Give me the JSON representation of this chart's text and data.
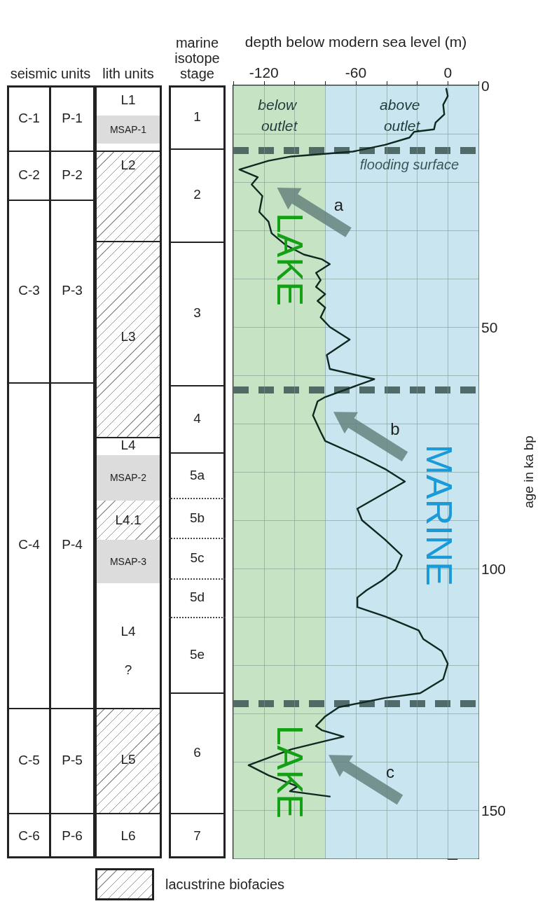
{
  "chart_data": [
    {
      "type": "other",
      "title": "seismic units",
      "annotations": [
        "C-1",
        "C-2",
        "C-3",
        "C-4",
        "C-5",
        "C-6",
        "P-1",
        "P-2",
        "P-3",
        "P-4",
        "P-5",
        "P-6"
      ]
    },
    {
      "type": "other",
      "title": "lith units",
      "annotations": [
        "L1",
        "MSAP-1",
        "L2",
        "L3",
        "L4",
        "MSAP-2",
        "L4.1",
        "MSAP-3",
        "L4",
        "?",
        "L5",
        "L6",
        "lacustrine biofacies"
      ]
    },
    {
      "type": "other",
      "title": "marine isotope stage",
      "annotations": [
        "1",
        "2",
        "3",
        "4",
        "5a",
        "5b",
        "5c",
        "5d",
        "5e",
        "6",
        "7"
      ]
    },
    {
      "type": "line",
      "xlabel": "depth below modern sea level (m)",
      "ylabel": "age in ka bp",
      "color": "#102820",
      "line_style": "solid",
      "grid": true,
      "x": [
        -1,
        0,
        -3,
        -2.3,
        -8,
        -9,
        -22,
        -25,
        -41,
        -62,
        -82,
        -102,
        -117,
        -136,
        -124,
        -128,
        -121,
        -123,
        -117,
        -115,
        -106,
        -94,
        -82,
        -77,
        -86,
        -83,
        -86,
        -80,
        -85,
        -80,
        -83,
        -77,
        -64,
        -79,
        -77,
        -48,
        -80,
        -85,
        -88,
        -83,
        -80,
        -56,
        -41,
        -28,
        -59,
        -56,
        -41,
        -30,
        -34,
        -43,
        -53,
        -59,
        -59,
        -41,
        -19,
        -16,
        -4,
        0,
        -3,
        -18,
        -41,
        -71,
        -80,
        -86,
        -82,
        -68,
        -80,
        -102,
        -130,
        -117,
        -98,
        -103,
        -77
      ],
      "values": [
        0.7,
        2.2,
        4,
        6,
        7.7,
        9.1,
        9.6,
        10.8,
        12.3,
        13.7,
        14.2,
        14.7,
        15.6,
        17.4,
        19,
        20.5,
        22.9,
        26.2,
        28.2,
        30.6,
        33,
        35,
        36,
        37,
        38.8,
        40.3,
        41.7,
        43.2,
        44.6,
        46,
        48,
        50,
        52.6,
        55.8,
        58.7,
        60.8,
        64.5,
        65.4,
        68.3,
        71.7,
        73.6,
        77,
        79.4,
        82,
        87.6,
        90,
        94,
        97.3,
        100.2,
        102.5,
        104.5,
        106,
        108,
        109.9,
        112.8,
        114.6,
        117.1,
        119.7,
        122.9,
        125.8,
        126.8,
        128.7,
        130.6,
        132.6,
        133.5,
        134.8,
        135.7,
        137.4,
        140.7,
        142.8,
        145.1,
        146.1,
        147.2
      ],
      "xlim": [
        -140,
        20
      ],
      "xticks": [
        {
          "value": -140,
          "label": null
        },
        -120,
        {
          "value": -100,
          "label": null
        },
        {
          "value": -80,
          "label": null
        },
        -60,
        {
          "value": -40,
          "label": null
        },
        {
          "value": -20,
          "label": null
        },
        0,
        {
          "value": 20,
          "label": null
        }
      ],
      "ylim": [
        160,
        0
      ],
      "yticks": [
        0,
        {
          "value": 10,
          "label": null
        },
        {
          "value": 20,
          "label": null
        },
        {
          "value": 30,
          "label": null
        },
        {
          "value": 40,
          "label": null
        },
        50,
        {
          "value": 60,
          "label": null
        },
        {
          "value": 70,
          "label": null
        },
        {
          "value": 80,
          "label": null
        },
        {
          "value": 90,
          "label": null
        },
        100,
        {
          "value": 110,
          "label": null
        },
        {
          "value": 120,
          "label": null
        },
        {
          "value": 130,
          "label": null
        },
        {
          "value": 140,
          "label": null
        },
        150,
        {
          "value": 160,
          "label": null
        }
      ],
      "bands": [
        {
          "axis": "x",
          "from": -140,
          "to": -80,
          "label": "below outlet",
          "color": "#c6e4c4"
        },
        {
          "axis": "x",
          "from": -80,
          "to": 20,
          "label": "above outlet",
          "color": "#c9e5ef"
        }
      ],
      "ref_lines": [
        {
          "axis": "y",
          "value": 13.5,
          "label": "flooding surface",
          "color": "#3c5653",
          "line_style": "dashed"
        },
        {
          "axis": "y",
          "value": 63,
          "label": null,
          "color": "#3c5653",
          "line_style": "dashed"
        },
        {
          "axis": "y",
          "value": 128,
          "label": null,
          "color": "#3c5653",
          "line_style": "dashed"
        }
      ],
      "annotations": [
        "LAKE",
        "MARINE",
        "LAKE",
        "a",
        "b",
        "c"
      ]
    }
  ]
}
